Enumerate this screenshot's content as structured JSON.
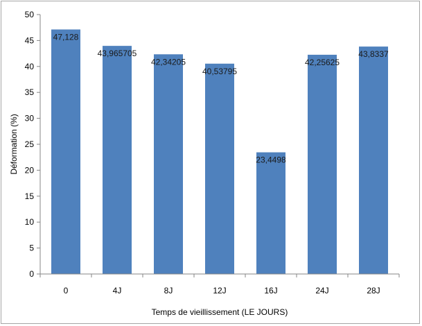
{
  "chart_data": {
    "type": "bar",
    "title": "",
    "xlabel": "Temps de vieillissement (LE JOURS)",
    "ylabel": "Déformation (%)",
    "ylim": [
      0,
      50
    ],
    "yticks": [
      0,
      5,
      10,
      15,
      20,
      25,
      30,
      35,
      40,
      45,
      50
    ],
    "categories": [
      "0",
      "4J",
      "8J",
      "12J",
      "16J",
      "24J",
      "28J"
    ],
    "values": [
      47.128,
      43.965705,
      42.34205,
      40.53795,
      23.4498,
      42.25625,
      43.8337
    ],
    "data_labels": [
      "47,128",
      "43,965705",
      "42,34205",
      "40,53795",
      "23,4498",
      "42,25625",
      "43,8337"
    ],
    "grid": false,
    "legend": "none",
    "colors": {
      "bar": "#4f81bd",
      "axis": "#868686",
      "frame": "#a6a6a6"
    }
  }
}
